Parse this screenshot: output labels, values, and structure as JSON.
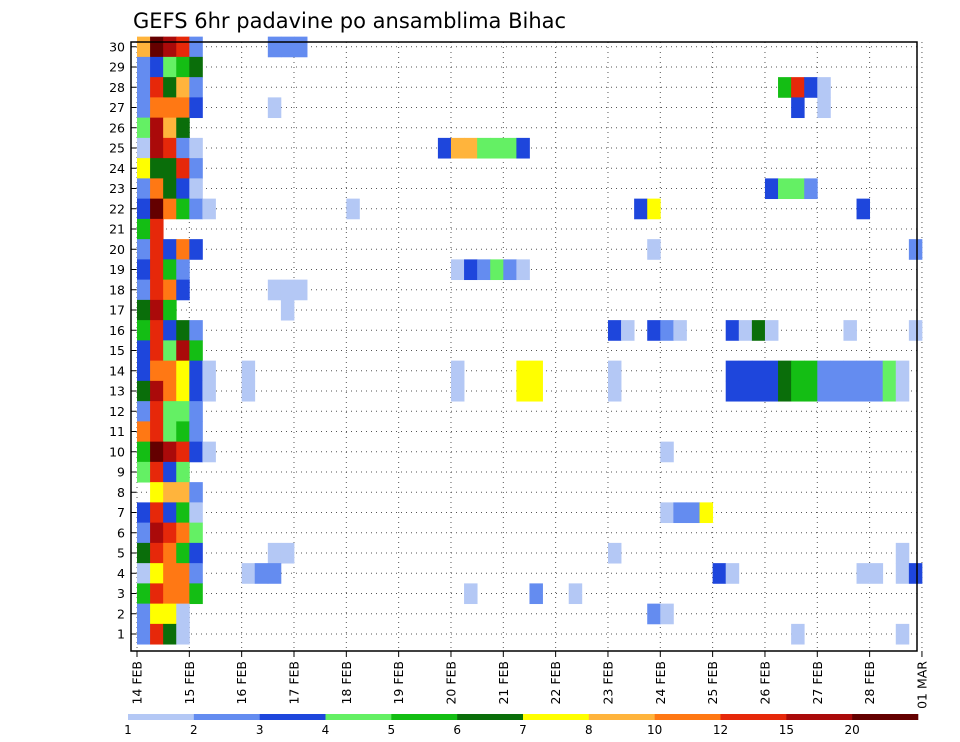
{
  "chart_data": {
    "type": "heatmap",
    "title": "GEFS 6hr padavine po ansamblima Bihac",
    "xlabel": "",
    "ylabel": "",
    "x_tick_labels": [
      "14 FEB",
      "15 FEB",
      "16 FEB",
      "17 FEB",
      "18 FEB",
      "19 FEB",
      "20 FEB",
      "21 FEB",
      "22 FEB",
      "23 FEB",
      "24 FEB",
      "25 FEB",
      "26 FEB",
      "27 FEB",
      "28 FEB",
      "01 MAR"
    ],
    "y_tick_labels": [
      "1",
      "2",
      "3",
      "4",
      "5",
      "6",
      "7",
      "8",
      "9",
      "10",
      "11",
      "12",
      "13",
      "14",
      "15",
      "16",
      "17",
      "18",
      "19",
      "20",
      "21",
      "22",
      "23",
      "24",
      "25",
      "26",
      "27",
      "28",
      "29",
      "30"
    ],
    "x_range_steps": [
      0,
      60
    ],
    "steps_per_day": 4,
    "y_range_members": [
      1,
      30
    ],
    "grid": true,
    "colorbar": {
      "placement": "bottom",
      "labels": [
        "1",
        "2",
        "3",
        "4",
        "5",
        "6",
        "7",
        "8",
        "10",
        "12",
        "15",
        "20"
      ],
      "colors": [
        "#b4c8f5",
        "#648cf0",
        "#1e46dc",
        "#64f064",
        "#14be14",
        "#0a6e0a",
        "#ffff00",
        "#ffb43c",
        "#ff7814",
        "#e6280a",
        "#aa0a0a",
        "#640000"
      ]
    },
    "cells_format": "[member, x_step, color_class] where x_step=0 is 14 FEB 00Z, 4 steps per day, color_class indexes colorbar.colors",
    "cells": [
      [
        30,
        0,
        7
      ],
      [
        30,
        1,
        11
      ],
      [
        30,
        2,
        10
      ],
      [
        30,
        3,
        9
      ],
      [
        30,
        4,
        1
      ],
      [
        30,
        10,
        1
      ],
      [
        30,
        11,
        1
      ],
      [
        30,
        12,
        1
      ],
      [
        29,
        0,
        1
      ],
      [
        29,
        1,
        2
      ],
      [
        29,
        2,
        3
      ],
      [
        29,
        3,
        4
      ],
      [
        29,
        4,
        5
      ],
      [
        28,
        0,
        1
      ],
      [
        28,
        1,
        9
      ],
      [
        28,
        2,
        5
      ],
      [
        28,
        3,
        7
      ],
      [
        28,
        4,
        1
      ],
      [
        28,
        49,
        4
      ],
      [
        28,
        50,
        9
      ],
      [
        28,
        51,
        2
      ],
      [
        28,
        52,
        0
      ],
      [
        27,
        0,
        1
      ],
      [
        27,
        1,
        8
      ],
      [
        27,
        2,
        8
      ],
      [
        27,
        3,
        8
      ],
      [
        27,
        4,
        2
      ],
      [
        27,
        10,
        0
      ],
      [
        27,
        50,
        2
      ],
      [
        27,
        52,
        0
      ],
      [
        26,
        0,
        3
      ],
      [
        26,
        1,
        10
      ],
      [
        26,
        2,
        7
      ],
      [
        26,
        3,
        5
      ],
      [
        25,
        0,
        0
      ],
      [
        25,
        1,
        10
      ],
      [
        25,
        2,
        9
      ],
      [
        25,
        3,
        1
      ],
      [
        25,
        4,
        0
      ],
      [
        25,
        23,
        2
      ],
      [
        25,
        24,
        7
      ],
      [
        25,
        25,
        7
      ],
      [
        25,
        26,
        3
      ],
      [
        25,
        27,
        3
      ],
      [
        25,
        28,
        3
      ],
      [
        25,
        29,
        2
      ],
      [
        24,
        0,
        6
      ],
      [
        24,
        1,
        5
      ],
      [
        24,
        2,
        5
      ],
      [
        24,
        3,
        9
      ],
      [
        24,
        4,
        1
      ],
      [
        23,
        0,
        1
      ],
      [
        23,
        1,
        8
      ],
      [
        23,
        2,
        5
      ],
      [
        23,
        3,
        2
      ],
      [
        23,
        4,
        0
      ],
      [
        23,
        48,
        2
      ],
      [
        23,
        49,
        3
      ],
      [
        23,
        50,
        3
      ],
      [
        23,
        51,
        1
      ],
      [
        22,
        0,
        2
      ],
      [
        22,
        1,
        11
      ],
      [
        22,
        2,
        8
      ],
      [
        22,
        3,
        4
      ],
      [
        22,
        4,
        1
      ],
      [
        22,
        5,
        0
      ],
      [
        22,
        16,
        0
      ],
      [
        22,
        38,
        2
      ],
      [
        22,
        39,
        6
      ],
      [
        22,
        55,
        2
      ],
      [
        21,
        0,
        4
      ],
      [
        21,
        1,
        9
      ],
      [
        20,
        0,
        1
      ],
      [
        20,
        1,
        9
      ],
      [
        20,
        2,
        2
      ],
      [
        20,
        3,
        8
      ],
      [
        20,
        4,
        2
      ],
      [
        20,
        39,
        0
      ],
      [
        20,
        59,
        1
      ],
      [
        19,
        0,
        2
      ],
      [
        19,
        1,
        9
      ],
      [
        19,
        2,
        4
      ],
      [
        19,
        3,
        1
      ],
      [
        19,
        24,
        0
      ],
      [
        19,
        25,
        2
      ],
      [
        19,
        26,
        1
      ],
      [
        19,
        27,
        3
      ],
      [
        19,
        28,
        1
      ],
      [
        19,
        29,
        0
      ],
      [
        18,
        0,
        1
      ],
      [
        18,
        1,
        9
      ],
      [
        18,
        2,
        8
      ],
      [
        18,
        3,
        2
      ],
      [
        18,
        10,
        0
      ],
      [
        18,
        11,
        0
      ],
      [
        18,
        12,
        0
      ],
      [
        17,
        0,
        5
      ],
      [
        17,
        1,
        10
      ],
      [
        17,
        2,
        4
      ],
      [
        17,
        11,
        0
      ],
      [
        16,
        0,
        4
      ],
      [
        16,
        1,
        9
      ],
      [
        16,
        2,
        2
      ],
      [
        16,
        3,
        5
      ],
      [
        16,
        4,
        1
      ],
      [
        16,
        36,
        2
      ],
      [
        16,
        37,
        0
      ],
      [
        16,
        39,
        2
      ],
      [
        16,
        40,
        1
      ],
      [
        16,
        41,
        0
      ],
      [
        16,
        45,
        2
      ],
      [
        16,
        46,
        0
      ],
      [
        16,
        47,
        5
      ],
      [
        16,
        48,
        0
      ],
      [
        16,
        54,
        0
      ],
      [
        16,
        59,
        0
      ],
      [
        15,
        0,
        2
      ],
      [
        15,
        1,
        9
      ],
      [
        15,
        2,
        3
      ],
      [
        15,
        3,
        10
      ],
      [
        15,
        4,
        4
      ],
      [
        14,
        0,
        2
      ],
      [
        14,
        1,
        8
      ],
      [
        14,
        2,
        8
      ],
      [
        14,
        3,
        6
      ],
      [
        14,
        4,
        2
      ],
      [
        14,
        5,
        0
      ],
      [
        14,
        8,
        0
      ],
      [
        14,
        24,
        0
      ],
      [
        14,
        29,
        6
      ],
      [
        14,
        30,
        6
      ],
      [
        14,
        36,
        0
      ],
      [
        14,
        45,
        2
      ],
      [
        14,
        46,
        2
      ],
      [
        14,
        47,
        2
      ],
      [
        14,
        48,
        2
      ],
      [
        14,
        49,
        5
      ],
      [
        14,
        50,
        4
      ],
      [
        14,
        51,
        4
      ],
      [
        14,
        52,
        1
      ],
      [
        14,
        53,
        1
      ],
      [
        14,
        54,
        1
      ],
      [
        14,
        55,
        1
      ],
      [
        14,
        56,
        1
      ],
      [
        14,
        57,
        3
      ],
      [
        14,
        58,
        0
      ],
      [
        13,
        0,
        5
      ],
      [
        13,
        1,
        10
      ],
      [
        13,
        2,
        8
      ],
      [
        13,
        3,
        6
      ],
      [
        13,
        4,
        2
      ],
      [
        13,
        5,
        0
      ],
      [
        13,
        8,
        0
      ],
      [
        13,
        24,
        0
      ],
      [
        13,
        29,
        6
      ],
      [
        13,
        30,
        6
      ],
      [
        13,
        36,
        0
      ],
      [
        13,
        45,
        2
      ],
      [
        13,
        46,
        2
      ],
      [
        13,
        47,
        2
      ],
      [
        13,
        48,
        2
      ],
      [
        13,
        49,
        5
      ],
      [
        13,
        50,
        4
      ],
      [
        13,
        51,
        4
      ],
      [
        13,
        52,
        1
      ],
      [
        13,
        53,
        1
      ],
      [
        13,
        54,
        1
      ],
      [
        13,
        55,
        1
      ],
      [
        13,
        56,
        1
      ],
      [
        13,
        57,
        3
      ],
      [
        13,
        58,
        0
      ],
      [
        12,
        0,
        1
      ],
      [
        12,
        1,
        9
      ],
      [
        12,
        2,
        3
      ],
      [
        12,
        3,
        3
      ],
      [
        12,
        4,
        1
      ],
      [
        11,
        0,
        8
      ],
      [
        11,
        1,
        9
      ],
      [
        11,
        2,
        3
      ],
      [
        11,
        3,
        4
      ],
      [
        11,
        4,
        1
      ],
      [
        10,
        0,
        4
      ],
      [
        10,
        1,
        11
      ],
      [
        10,
        2,
        10
      ],
      [
        10,
        3,
        9
      ],
      [
        10,
        4,
        2
      ],
      [
        10,
        5,
        0
      ],
      [
        10,
        40,
        0
      ],
      [
        9,
        0,
        3
      ],
      [
        9,
        1,
        9
      ],
      [
        9,
        2,
        2
      ],
      [
        9,
        3,
        3
      ],
      [
        8,
        1,
        6
      ],
      [
        8,
        2,
        7
      ],
      [
        8,
        3,
        7
      ],
      [
        8,
        4,
        1
      ],
      [
        7,
        0,
        2
      ],
      [
        7,
        1,
        9
      ],
      [
        7,
        2,
        2
      ],
      [
        7,
        3,
        4
      ],
      [
        7,
        4,
        0
      ],
      [
        7,
        40,
        0
      ],
      [
        7,
        41,
        1
      ],
      [
        7,
        42,
        1
      ],
      [
        7,
        43,
        6
      ],
      [
        6,
        0,
        1
      ],
      [
        6,
        1,
        10
      ],
      [
        6,
        2,
        9
      ],
      [
        6,
        3,
        8
      ],
      [
        6,
        4,
        3
      ],
      [
        5,
        0,
        5
      ],
      [
        5,
        1,
        9
      ],
      [
        5,
        2,
        8
      ],
      [
        5,
        3,
        4
      ],
      [
        5,
        4,
        2
      ],
      [
        5,
        10,
        0
      ],
      [
        5,
        11,
        0
      ],
      [
        5,
        36,
        0
      ],
      [
        5,
        58,
        0
      ],
      [
        4,
        0,
        0
      ],
      [
        4,
        1,
        6
      ],
      [
        4,
        2,
        8
      ],
      [
        4,
        3,
        8
      ],
      [
        4,
        4,
        1
      ],
      [
        4,
        8,
        0
      ],
      [
        4,
        9,
        1
      ],
      [
        4,
        10,
        1
      ],
      [
        4,
        44,
        2
      ],
      [
        4,
        45,
        0
      ],
      [
        4,
        55,
        0
      ],
      [
        4,
        56,
        0
      ],
      [
        4,
        58,
        0
      ],
      [
        4,
        59,
        2
      ],
      [
        3,
        0,
        4
      ],
      [
        3,
        1,
        9
      ],
      [
        3,
        2,
        8
      ],
      [
        3,
        3,
        8
      ],
      [
        3,
        4,
        4
      ],
      [
        3,
        25,
        0
      ],
      [
        3,
        30,
        1
      ],
      [
        3,
        33,
        0
      ],
      [
        2,
        0,
        1
      ],
      [
        2,
        1,
        6
      ],
      [
        2,
        2,
        6
      ],
      [
        2,
        3,
        0
      ],
      [
        2,
        39,
        1
      ],
      [
        2,
        40,
        0
      ],
      [
        1,
        0,
        1
      ],
      [
        1,
        1,
        9
      ],
      [
        1,
        2,
        5
      ],
      [
        1,
        3,
        0
      ],
      [
        1,
        50,
        0
      ],
      [
        1,
        58,
        0
      ]
    ]
  }
}
